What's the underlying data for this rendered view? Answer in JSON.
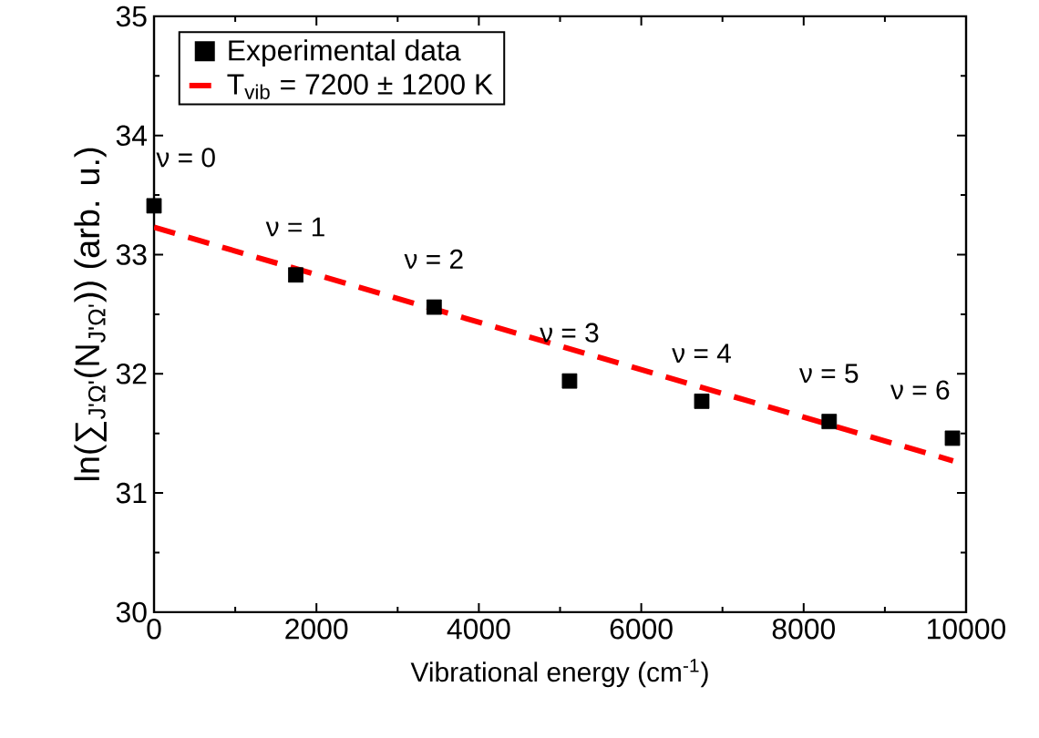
{
  "chart_data": {
    "type": "scatter",
    "xlabel": "Vibrational energy (cm$^{-1}$)",
    "ylabel": "ln(∑$_{J'Ω'}$(N$_{J'Ω'}$)) (arb. u.)",
    "xlim": [
      0,
      10000
    ],
    "ylim": [
      30,
      35
    ],
    "xticks": [
      0,
      2000,
      4000,
      6000,
      8000,
      10000
    ],
    "yticks": [
      30,
      31,
      32,
      33,
      34,
      35
    ],
    "legend": "top left",
    "marker": "square",
    "series": [
      {
        "name": "Experimental data",
        "color": "#000000",
        "x": [
          0,
          1745,
          3449,
          5117,
          6745,
          8314,
          9832
        ],
        "values": [
          33.41,
          32.83,
          32.56,
          31.94,
          31.77,
          31.6,
          31.46
        ]
      },
      {
        "name": "T$_{vib}$ = 7200 ± 1200 K",
        "type": "line",
        "color": "#ff0000",
        "line_style": "dashed",
        "marker": "none",
        "x": [
          0,
          9840
        ],
        "values": [
          33.23,
          31.27
        ]
      }
    ],
    "annotations": [
      {
        "text": "ν = 0",
        "x": 0,
        "y": 33.41
      },
      {
        "text": "ν = 1",
        "x": 1745,
        "y": 32.83
      },
      {
        "text": "ν = 2",
        "x": 3449,
        "y": 32.56
      },
      {
        "text": "ν = 3",
        "x": 5117,
        "y": 31.94
      },
      {
        "text": "ν = 4",
        "x": 6745,
        "y": 31.77
      },
      {
        "text": "ν = 5",
        "x": 8314,
        "y": 31.6
      },
      {
        "text": "ν = 6",
        "x": 9832,
        "y": 31.46
      }
    ]
  }
}
